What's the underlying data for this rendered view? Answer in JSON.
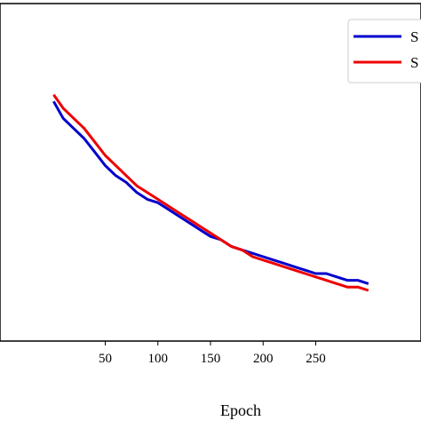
{
  "chart_data": {
    "type": "line",
    "xlabel": "Epoch",
    "ylabel": "",
    "xlim": [
      -50,
      350
    ],
    "ylim": [
      0,
      1
    ],
    "x_ticks": [
      50,
      100,
      150,
      200,
      250
    ],
    "grid": false,
    "legend_position": "top-right",
    "series": [
      {
        "name": "S",
        "color": "#0000cc",
        "x": [
          1,
          10,
          20,
          30,
          40,
          50,
          60,
          70,
          80,
          90,
          100,
          110,
          120,
          130,
          140,
          150,
          160,
          170,
          180,
          190,
          200,
          210,
          220,
          230,
          240,
          250,
          260,
          270,
          280,
          290,
          300
        ],
        "y": [
          0.71,
          0.66,
          0.63,
          0.6,
          0.56,
          0.52,
          0.49,
          0.47,
          0.44,
          0.42,
          0.41,
          0.39,
          0.37,
          0.35,
          0.33,
          0.31,
          0.3,
          0.28,
          0.27,
          0.26,
          0.25,
          0.24,
          0.23,
          0.22,
          0.21,
          0.2,
          0.2,
          0.19,
          0.18,
          0.18,
          0.17
        ]
      },
      {
        "name": "S",
        "color": "#ee0000",
        "x": [
          1,
          10,
          20,
          30,
          40,
          50,
          60,
          70,
          80,
          90,
          100,
          110,
          120,
          130,
          140,
          150,
          160,
          170,
          180,
          190,
          200,
          210,
          220,
          230,
          240,
          250,
          260,
          270,
          280,
          290,
          300
        ],
        "y": [
          0.73,
          0.69,
          0.66,
          0.63,
          0.59,
          0.55,
          0.52,
          0.49,
          0.46,
          0.44,
          0.42,
          0.4,
          0.38,
          0.36,
          0.34,
          0.32,
          0.3,
          0.28,
          0.27,
          0.25,
          0.24,
          0.23,
          0.22,
          0.21,
          0.2,
          0.19,
          0.18,
          0.17,
          0.16,
          0.16,
          0.15
        ]
      }
    ]
  }
}
